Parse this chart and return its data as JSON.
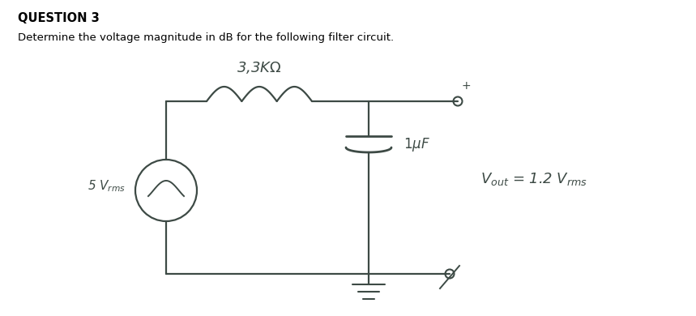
{
  "title": "QUESTION 3",
  "subtitle": "Determine the voltage magnitude in dB for the following filter circuit.",
  "title_fontsize": 10.5,
  "subtitle_fontsize": 9.5,
  "bg_color": "#ffffff",
  "line_color": "#3d4a45",
  "fig_width": 8.59,
  "fig_height": 3.9,
  "dpi": 100
}
